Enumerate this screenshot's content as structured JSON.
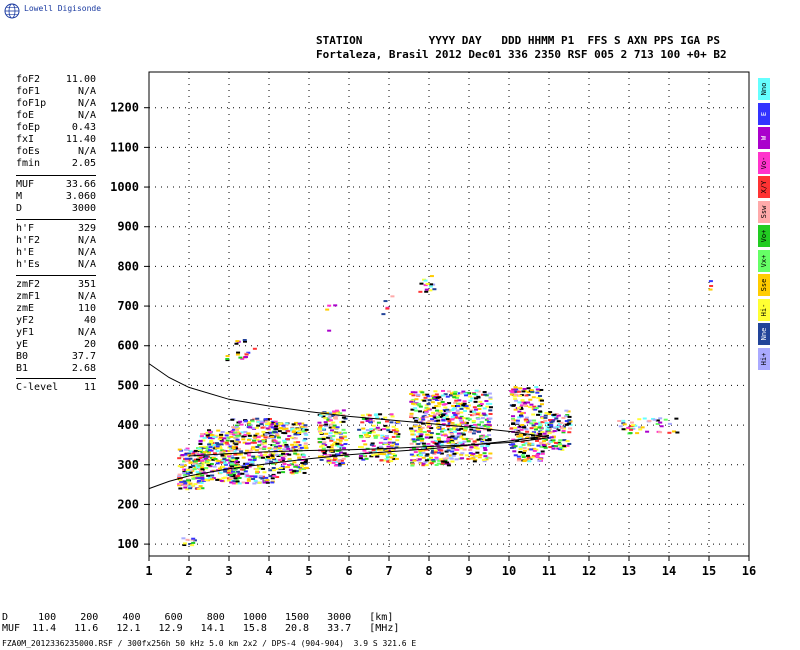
{
  "logo": {
    "text": "Lowell Digisonde",
    "icon": "globe-icon"
  },
  "header": {
    "labels": "STATION          YYYY DAY   DDD HHMM P1  FFS S AXN PPS IGA PS",
    "values": "Fortaleza, Brasil 2012 Dec01 336 2350 RSF 005 2 713 100 +0+ B2"
  },
  "params": {
    "g1": [
      {
        "k": "foF2",
        "v": "11.00"
      },
      {
        "k": "foF1",
        "v": "N/A"
      },
      {
        "k": "foF1p",
        "v": "N/A"
      },
      {
        "k": "foE",
        "v": "N/A"
      },
      {
        "k": "foEp",
        "v": "0.43"
      },
      {
        "k": "fxI",
        "v": "11.40"
      },
      {
        "k": "foEs",
        "v": "N/A"
      },
      {
        "k": "fmin",
        "v": "2.05"
      }
    ],
    "g2": [
      {
        "k": "MUF",
        "v": "33.66"
      },
      {
        "k": "M",
        "v": "3.060"
      },
      {
        "k": "D",
        "v": "3000"
      }
    ],
    "g3": [
      {
        "k": "h'F",
        "v": "329"
      },
      {
        "k": "h'F2",
        "v": "N/A"
      },
      {
        "k": "h'E",
        "v": "N/A"
      },
      {
        "k": "h'Es",
        "v": "N/A"
      }
    ],
    "g4": [
      {
        "k": "zmF2",
        "v": "351"
      },
      {
        "k": "zmF1",
        "v": "N/A"
      },
      {
        "k": "zmE",
        "v": "110"
      },
      {
        "k": "yF2",
        "v": "40"
      },
      {
        "k": "yF1",
        "v": "N/A"
      },
      {
        "k": "yE",
        "v": "20"
      },
      {
        "k": "B0",
        "v": "37.7"
      },
      {
        "k": "B1",
        "v": "2.68"
      }
    ],
    "g5": [
      {
        "k": "C-level",
        "v": "11"
      }
    ]
  },
  "legend": [
    {
      "label": "Nno",
      "color": "#66ffff"
    },
    {
      "label": "E",
      "color": "#3333ff"
    },
    {
      "label": "W",
      "color": "#aa00cc"
    },
    {
      "label": "Vo-",
      "color": "#ff33cc"
    },
    {
      "label": "X/Y",
      "color": "#ff3333"
    },
    {
      "label": "Ssw",
      "color": "#ffaaaa"
    },
    {
      "label": "Vo+",
      "color": "#22cc22"
    },
    {
      "label": "Vx+",
      "color": "#66ff66"
    },
    {
      "label": "Sse",
      "color": "#ffcc00"
    },
    {
      "label": "Hi-",
      "color": "#ffff33"
    },
    {
      "label": "Nne",
      "color": "#224499"
    },
    {
      "label": "Hi+",
      "color": "#aaaaff"
    }
  ],
  "bottom": {
    "d_line": "D     100    200    400    600    800   1000   1500   3000   [km]",
    "muf_line": "MUF  11.4   11.6   12.1   12.9   14.1   15.8   20.8   33.7   [MHz]"
  },
  "footer": "FZA0M_2012336235000.RSF / 300fx256h 50 kHz 5.0 km 2x2 / DPS-4 (904-904)  3.9 S 321.6 E",
  "chart_data": {
    "type": "scatter",
    "title": "",
    "xlabel": "",
    "ylabel": "",
    "xlim": [
      1,
      16
    ],
    "ylim": [
      70,
      1290
    ],
    "x_ticks": [
      1,
      2,
      3,
      4,
      5,
      6,
      7,
      8,
      9,
      10,
      11,
      12,
      13,
      14,
      15,
      16
    ],
    "y_ticks": [
      100,
      200,
      300,
      400,
      500,
      600,
      700,
      800,
      900,
      1000,
      1100,
      1200
    ],
    "grid": true,
    "clusters": [
      {
        "x": [
          1.75,
          2.1
        ],
        "y": [
          95,
          120
        ],
        "n": 10
      },
      {
        "x": [
          1.7,
          2.3
        ],
        "y": [
          240,
          345
        ],
        "n": 160
      },
      {
        "x": [
          2.2,
          3.2
        ],
        "y": [
          260,
          390
        ],
        "n": 260
      },
      {
        "x": [
          3.0,
          4.2
        ],
        "y": [
          255,
          420
        ],
        "n": 300
      },
      {
        "x": [
          4.0,
          4.9
        ],
        "y": [
          280,
          410
        ],
        "n": 200
      },
      {
        "x": [
          5.2,
          5.9
        ],
        "y": [
          300,
          440
        ],
        "n": 170
      },
      {
        "x": [
          6.2,
          7.2
        ],
        "y": [
          310,
          430
        ],
        "n": 160
      },
      {
        "x": [
          7.5,
          8.5
        ],
        "y": [
          300,
          490
        ],
        "n": 320
      },
      {
        "x": [
          8.5,
          9.5
        ],
        "y": [
          310,
          490
        ],
        "n": 300
      },
      {
        "x": [
          10.0,
          10.8
        ],
        "y": [
          310,
          500
        ],
        "n": 240
      },
      {
        "x": [
          10.8,
          11.5
        ],
        "y": [
          340,
          440
        ],
        "n": 110
      },
      {
        "x": [
          12.7,
          14.2
        ],
        "y": [
          380,
          420
        ],
        "n": 45
      },
      {
        "x": [
          2.9,
          3.6
        ],
        "y": [
          565,
          625
        ],
        "n": 18
      },
      {
        "x": [
          5.3,
          5.7
        ],
        "y": [
          620,
          720
        ],
        "n": 4
      },
      {
        "x": [
          6.8,
          7.1
        ],
        "y": [
          680,
          740
        ],
        "n": 5
      },
      {
        "x": [
          7.7,
          8.1
        ],
        "y": [
          720,
          780
        ],
        "n": 14
      },
      {
        "x": [
          14.9,
          15.1
        ],
        "y": [
          740,
          770
        ],
        "n": 3
      }
    ],
    "curves": [
      {
        "x": [
          1.0,
          1.5,
          2,
          3,
          4,
          5,
          6,
          7,
          8,
          9,
          10,
          10.5,
          11
        ],
        "y": [
          555,
          520,
          495,
          465,
          448,
          434,
          422,
          413,
          404,
          395,
          384,
          377,
          370
        ]
      },
      {
        "x": [
          1.0,
          1.5,
          2,
          3,
          4,
          5,
          6,
          7,
          8,
          9,
          10,
          10.5,
          11
        ],
        "y": [
          240,
          258,
          272,
          290,
          303,
          315,
          325,
          333,
          340,
          349,
          360,
          367,
          374
        ]
      },
      {
        "x": [
          2,
          3,
          4,
          5,
          6,
          7,
          8,
          9,
          10,
          10.5,
          11
        ],
        "y": [
          322,
          328,
          333,
          336,
          338,
          341,
          346,
          350,
          356,
          362,
          368
        ]
      }
    ]
  }
}
